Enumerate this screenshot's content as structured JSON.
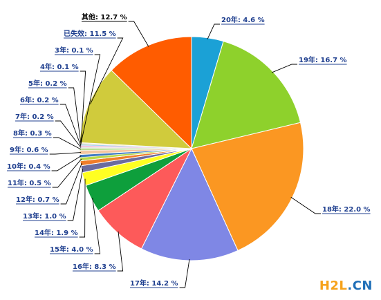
{
  "chart_data": {
    "type": "pie",
    "title": "",
    "slices": [
      {
        "label": "20年: 4.6 %",
        "value": 4.6,
        "color": "#1ba1d6"
      },
      {
        "label": "19年: 16.7 %",
        "value": 16.7,
        "color": "#8ed12c"
      },
      {
        "label": "18年: 22.0 %",
        "value": 22.0,
        "color": "#fb9722"
      },
      {
        "label": "17年: 14.2 %",
        "value": 14.2,
        "color": "#7f87e5"
      },
      {
        "label": "16年: 8.3 %",
        "value": 8.3,
        "color": "#fd5a5a"
      },
      {
        "label": "15年: 4.0 %",
        "value": 4.0,
        "color": "#0e9f3c"
      },
      {
        "label": "14年: 1.9 %",
        "value": 1.9,
        "color": "#ffff22"
      },
      {
        "label": "13年: 1.0 %",
        "value": 1.0,
        "color": "#6b6b9e"
      },
      {
        "label": "12年: 0.7 %",
        "value": 0.7,
        "color": "#f07d2a"
      },
      {
        "label": "11年: 0.5 %",
        "value": 0.5,
        "color": "#b9d94a"
      },
      {
        "label": "10年: 0.4 %",
        "value": 0.4,
        "color": "#3c79c2"
      },
      {
        "label": "9年: 0.6 %",
        "value": 0.6,
        "color": "#f4c7a1"
      },
      {
        "label": "8年: 0.3 %",
        "value": 0.3,
        "color": "#b7e08f"
      },
      {
        "label": "7年: 0.2 %",
        "value": 0.2,
        "color": "#e8e8e8"
      },
      {
        "label": "6年: 0.2 %",
        "value": 0.2,
        "color": "#f2b6d9"
      },
      {
        "label": "5年: 0.2 %",
        "value": 0.2,
        "color": "#a7d2f0"
      },
      {
        "label": "4年: 0.1 %",
        "value": 0.1,
        "color": "#ffe08a"
      },
      {
        "label": "3年: 0.1 %",
        "value": 0.1,
        "color": "#d4d4d4"
      },
      {
        "label": "已失效: 11.5 %",
        "value": 11.5,
        "color": "#d0cb3c"
      },
      {
        "label": "其他: 12.7 %",
        "value": 12.7,
        "color": "#ff5c00"
      }
    ]
  },
  "watermark": {
    "part1": "H2L",
    "part2": ".CN"
  }
}
